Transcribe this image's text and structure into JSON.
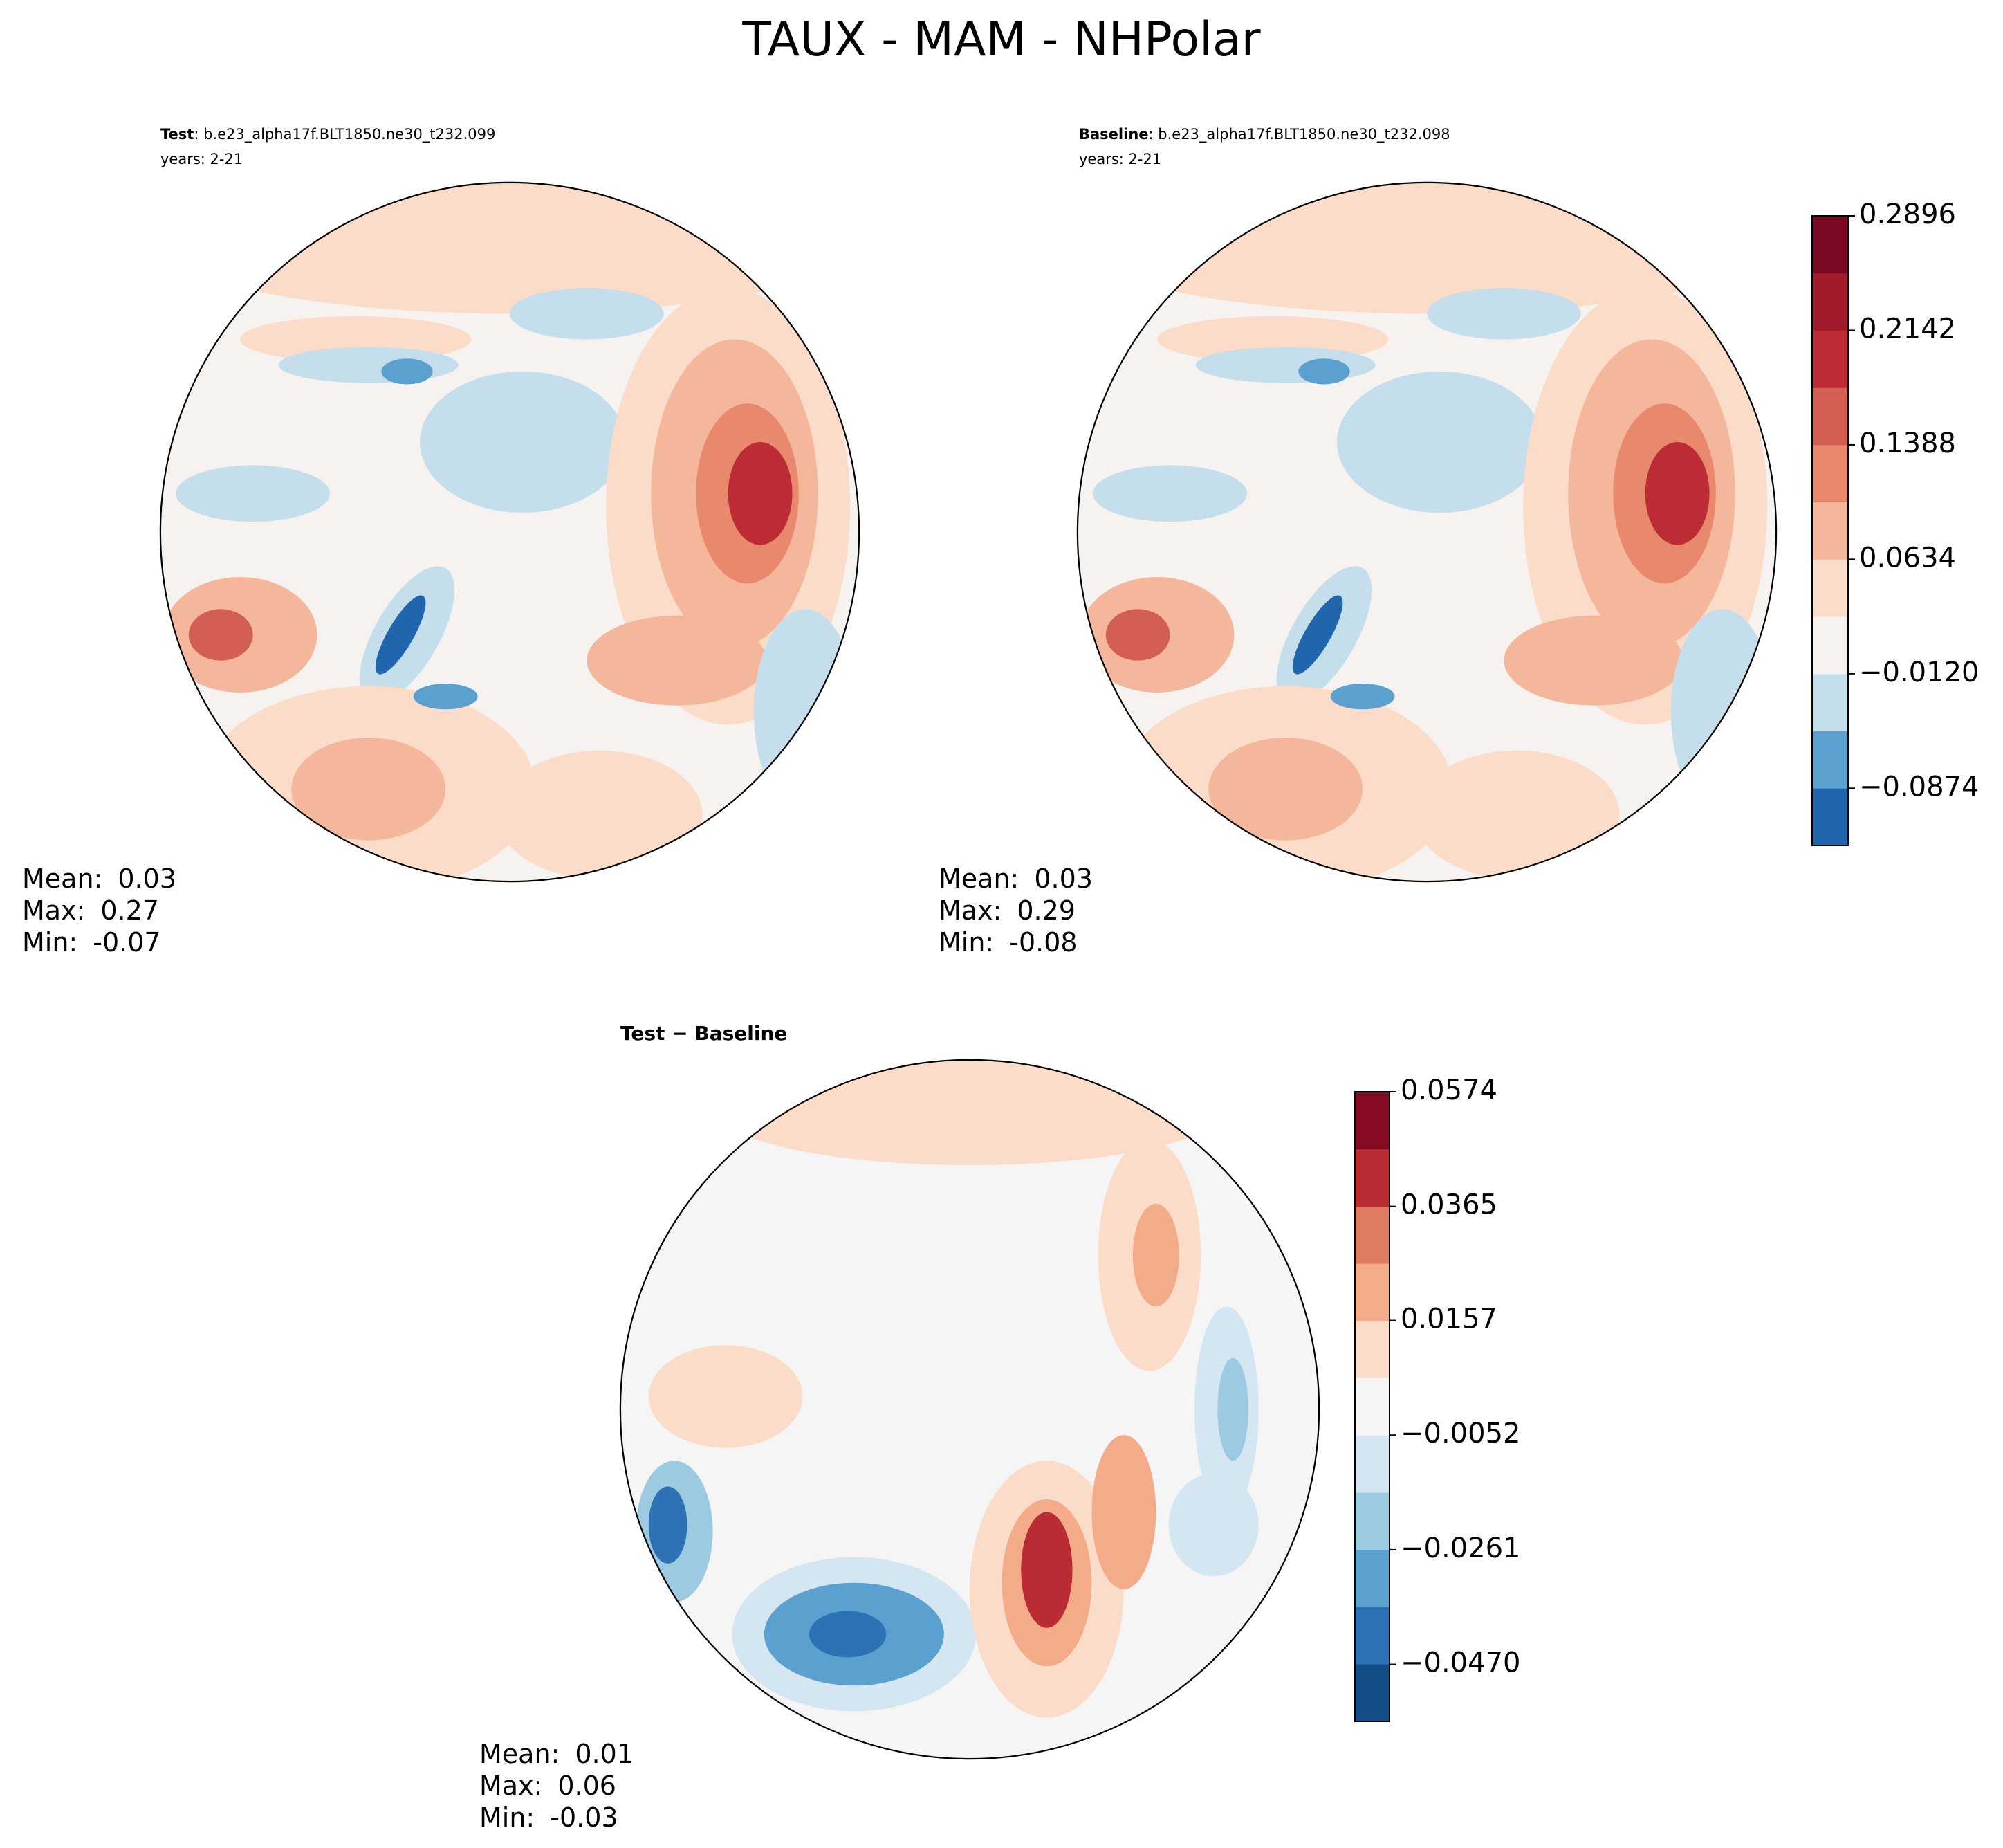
{
  "title": "TAUX - MAM - NHPolar",
  "chart_data": [
    {
      "type": "map",
      "case_label": "Test",
      "case_name": ": b.e23_alpha17f.BLT1850.ne30_t232.099",
      "subtitle": "years: 2-21",
      "stats": [
        {
          "label": "Mean:",
          "value": 0.03
        },
        {
          "label": "Max:",
          "value": 0.27
        },
        {
          "label": "Min:",
          "value": -0.07
        }
      ]
    },
    {
      "type": "map",
      "case_label": "Baseline",
      "case_name": ": b.e23_alpha17f.BLT1850.ne30_t232.098",
      "subtitle": "years: 2-21",
      "stats": [
        {
          "label": "Mean:",
          "value": 0.03
        },
        {
          "label": "Max:",
          "value": 0.29
        },
        {
          "label": "Min:",
          "value": -0.08
        }
      ],
      "colorbar": {
        "ylim": [
          -0.1251,
          0.2896
        ],
        "yticks": [
          {
            "value": -0.0874,
            "label": "−0.0874"
          },
          {
            "value": -0.012,
            "label": "−0.0120"
          },
          0.0634,
          0.1388,
          0.2142,
          0.2896
        ],
        "colors": [
          "#2166ac",
          "#5aa1cf",
          "#c5deec",
          "#f6f2f0",
          "#fbdcc9",
          "#f5b79b",
          "#e8886c",
          "#d25f51",
          "#bd2b35",
          "#a01b2c",
          "#7a0a22"
        ]
      }
    },
    {
      "type": "map",
      "title": "Test − Baseline",
      "stats": [
        {
          "label": "Mean:",
          "value": 0.01
        },
        {
          "label": "Max:",
          "value": 0.06
        },
        {
          "label": "Min:",
          "value": -0.03
        }
      ],
      "colorbar": {
        "ylim": [
          -0.0574,
          0.0574
        ],
        "yticks": [
          {
            "value": -0.047,
            "label": "−0.0470"
          },
          {
            "value": -0.0261,
            "label": "−0.0261"
          },
          {
            "value": -0.0052,
            "label": "−0.0052"
          },
          0.0157,
          0.0365,
          0.0574
        ],
        "colors": [
          "#154d87",
          "#2c72b4",
          "#5aa1cf",
          "#9ccae1",
          "#d4e6f1",
          "#f5f5f5",
          "#fbdcc9",
          "#f4ab8a",
          "#df7b62",
          "#bb2b34",
          "#840b22"
        ]
      }
    }
  ]
}
